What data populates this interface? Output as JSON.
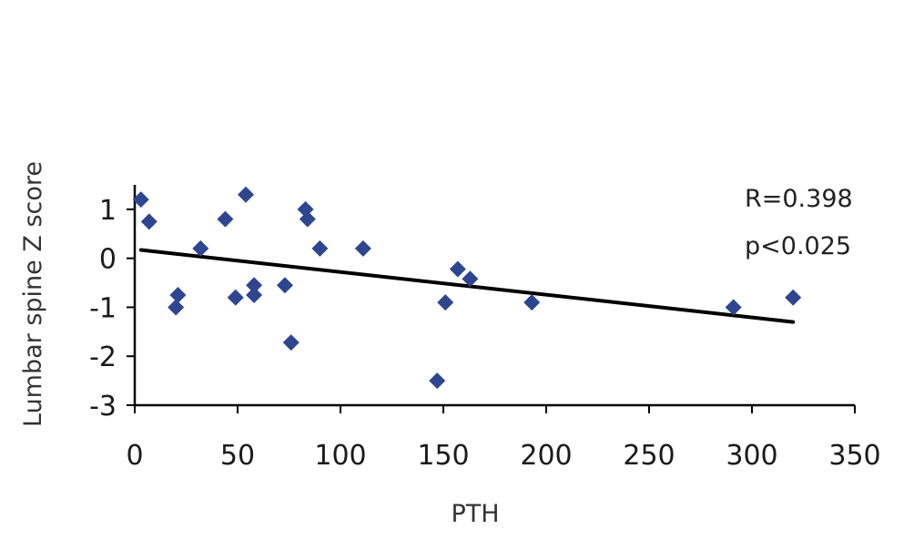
{
  "chart_data": {
    "type": "scatter",
    "title": "",
    "xlabel": "PTH",
    "ylabel": "Lumbar spine Z score",
    "xlim": [
      0,
      350
    ],
    "ylim": [
      -3,
      1.5
    ],
    "xticks": [
      0,
      50,
      100,
      150,
      200,
      250,
      300,
      350
    ],
    "yticks": [
      1,
      0,
      -1,
      -2,
      -3
    ],
    "grid": false,
    "legend": "none",
    "marker_color": "#2E4690",
    "line_color": "#000000",
    "series": [
      {
        "marker": "diamond",
        "points": [
          [
            3,
            1.2
          ],
          [
            7,
            0.75
          ],
          [
            20,
            -1.0
          ],
          [
            21,
            -0.75
          ],
          [
            32,
            0.2
          ],
          [
            44,
            0.8
          ],
          [
            49,
            -0.8
          ],
          [
            54,
            1.3
          ],
          [
            58,
            -0.55
          ],
          [
            58,
            -0.75
          ],
          [
            73,
            -0.55
          ],
          [
            76,
            -1.72
          ],
          [
            83,
            1.0
          ],
          [
            84,
            0.8
          ],
          [
            90,
            0.2
          ],
          [
            111,
            0.2
          ],
          [
            147,
            -2.5
          ],
          [
            151,
            -0.9
          ],
          [
            157,
            -0.22
          ],
          [
            163,
            -0.42
          ],
          [
            193,
            -0.9
          ],
          [
            291,
            -1.0
          ],
          [
            320,
            -0.8
          ]
        ]
      }
    ],
    "trendline": {
      "x": [
        3,
        320
      ],
      "y": [
        0.17,
        -1.3
      ]
    },
    "annotations": [
      "R=0.398",
      "p<0.025"
    ]
  }
}
